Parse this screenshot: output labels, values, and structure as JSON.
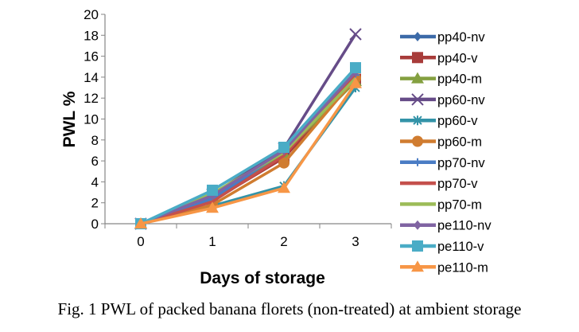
{
  "chart_data": {
    "type": "line",
    "title": "",
    "xlabel": "Days of storage",
    "ylabel": "PWL %",
    "categories": [
      "0",
      "1",
      "2",
      "3"
    ],
    "ylim": [
      0,
      20
    ],
    "yticks": [
      "0",
      "2",
      "4",
      "6",
      "8",
      "10",
      "12",
      "14",
      "16",
      "18",
      "20"
    ],
    "legend_position": "right",
    "series": [
      {
        "name": "pp40-nv",
        "color": "#3c6aa8",
        "marker": "diamond",
        "values": [
          0,
          2.3,
          6.6,
          14.0
        ]
      },
      {
        "name": "pp40-v",
        "color": "#a83c3a",
        "marker": "square",
        "values": [
          0,
          2.2,
          6.3,
          13.8
        ]
      },
      {
        "name": "pp40-m",
        "color": "#84a040",
        "marker": "triangle",
        "values": [
          0,
          2.6,
          6.7,
          13.6
        ]
      },
      {
        "name": "pp60-nv",
        "color": "#664c88",
        "marker": "x",
        "values": [
          0,
          2.8,
          7.2,
          18.1
        ]
      },
      {
        "name": "pp60-v",
        "color": "#3393a8",
        "marker": "star",
        "values": [
          0,
          1.7,
          3.6,
          13.0
        ]
      },
      {
        "name": "pp60-m",
        "color": "#d07c30",
        "marker": "circle",
        "values": [
          0,
          1.8,
          5.8,
          13.9
        ]
      },
      {
        "name": "pp70-nv",
        "color": "#4a7cc4",
        "marker": "plus",
        "values": [
          0,
          2.4,
          6.9,
          14.2
        ]
      },
      {
        "name": "pp70-v",
        "color": "#c4504c",
        "marker": "none",
        "values": [
          0,
          2.1,
          6.5,
          14.3
        ]
      },
      {
        "name": "pp70-m",
        "color": "#9cbc58",
        "marker": "none",
        "values": [
          0,
          2.9,
          6.8,
          13.9
        ]
      },
      {
        "name": "pe110-nv",
        "color": "#8064a2",
        "marker": "diamond",
        "values": [
          0,
          2.7,
          7.0,
          14.5
        ]
      },
      {
        "name": "pe110-v",
        "color": "#4aacc6",
        "marker": "square",
        "values": [
          0,
          3.2,
          7.3,
          14.9
        ]
      },
      {
        "name": "pe110-m",
        "color": "#f79646",
        "marker": "triangle",
        "values": [
          0,
          1.5,
          3.4,
          13.4
        ]
      }
    ]
  },
  "caption": "Fig. 1 PWL of packed banana florets (non-treated) at ambient storage"
}
